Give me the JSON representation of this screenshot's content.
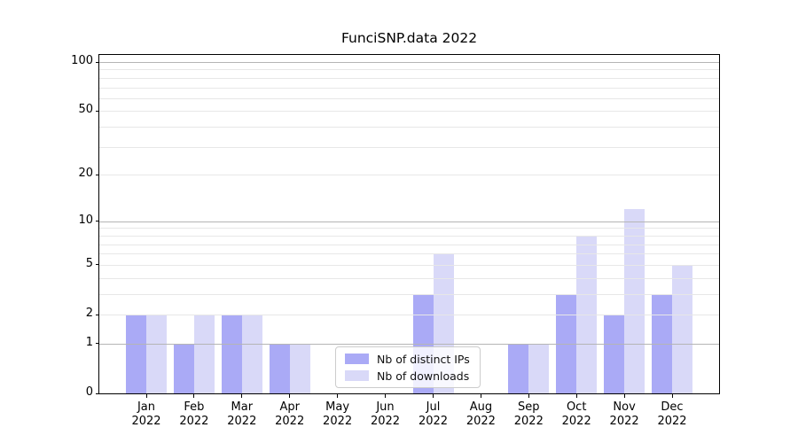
{
  "chart_data": {
    "type": "bar",
    "title": "FunciSNP.data 2022",
    "categories": [
      "Jan",
      "Feb",
      "Mar",
      "Apr",
      "May",
      "Jun",
      "Jul",
      "Aug",
      "Sep",
      "Oct",
      "Nov",
      "Dec"
    ],
    "year_label": "2022",
    "series": [
      {
        "name": "Nb of distinct IPs",
        "color": "#aaaaf6",
        "values": [
          2,
          1,
          2,
          1,
          0,
          0,
          3,
          0,
          1,
          3,
          2,
          3
        ]
      },
      {
        "name": "Nb of downloads",
        "color": "#d9d9f8",
        "values": [
          2,
          2,
          2,
          1,
          0,
          0,
          6,
          0,
          1,
          8,
          12,
          5
        ]
      }
    ],
    "yscale": "log1p",
    "ylim": [
      0,
      110
    ],
    "y_tick_values": [
      0,
      1,
      2,
      5,
      10,
      20,
      50,
      100
    ],
    "grid": "horizontal gridlines, major at 1/10/100, minor at 2-9 and 20-90",
    "legend_position": "lower center inside plot"
  },
  "colors": {
    "grid_major": "#b5b5b5",
    "grid_minor": "#e7e7e7",
    "axis": "#000000",
    "legend_border": "#cccccc"
  }
}
